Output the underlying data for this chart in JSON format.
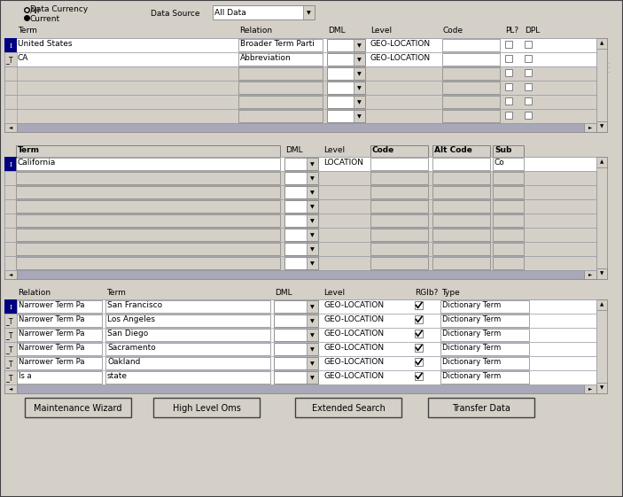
{
  "panel_color": "#d4d0c8",
  "blue_sel": "#000080",
  "dark_blue_scroll": "#8080a0",
  "top_section": {
    "rows": [
      {
        "sel": true,
        "prefix": "I",
        "term": "United States",
        "relation": "Broader Term Parti",
        "level": "GEO-LOCATION"
      },
      {
        "sel": false,
        "prefix": "_T",
        "term": "CA",
        "relation": "Abbreviation",
        "level": "GEO-LOCATION"
      },
      {
        "sel": false,
        "prefix": "",
        "term": "",
        "relation": "",
        "level": ""
      },
      {
        "sel": false,
        "prefix": "",
        "term": "",
        "relation": "",
        "level": ""
      },
      {
        "sel": false,
        "prefix": "",
        "term": "",
        "relation": "",
        "level": ""
      },
      {
        "sel": false,
        "prefix": "",
        "term": "",
        "relation": "",
        "level": ""
      }
    ]
  },
  "mid_section": {
    "rows": [
      {
        "sel": true,
        "term": "California",
        "level": "LOCATION",
        "sub": "Co"
      },
      {
        "sel": false,
        "term": "",
        "level": "",
        "sub": ""
      },
      {
        "sel": false,
        "term": "",
        "level": "",
        "sub": ""
      },
      {
        "sel": false,
        "term": "",
        "level": "",
        "sub": ""
      },
      {
        "sel": false,
        "term": "",
        "level": "",
        "sub": ""
      },
      {
        "sel": false,
        "term": "",
        "level": "",
        "sub": ""
      },
      {
        "sel": false,
        "term": "",
        "level": "",
        "sub": ""
      },
      {
        "sel": false,
        "term": "",
        "level": "",
        "sub": ""
      }
    ]
  },
  "bot_section": {
    "rows": [
      {
        "sel": true,
        "prefix": "I",
        "relation": "Narrower Term Pa",
        "term": "San Francisco",
        "level": "GEO-LOCATION",
        "rglb": true,
        "type": "Dictionary Term"
      },
      {
        "sel": false,
        "prefix": "_T",
        "relation": "Narrower Term Pa",
        "term": "Los Angeles",
        "level": "GEO-LOCATION",
        "rglb": true,
        "type": "Dictionary Term"
      },
      {
        "sel": false,
        "prefix": "_T",
        "relation": "Narrower Term Pa",
        "term": "San Diego",
        "level": "GEO-LOCATION",
        "rglb": true,
        "type": "Dictionary Term"
      },
      {
        "sel": false,
        "prefix": "_T",
        "relation": "Narrower Term Pa",
        "term": "Sacramento",
        "level": "GEO-LOCATION",
        "rglb": true,
        "type": "Dictionary Term"
      },
      {
        "sel": false,
        "prefix": "_T",
        "relation": "Narrower Term Pa",
        "term": "Oakland",
        "level": "GEO-LOCATION",
        "rglb": true,
        "type": "Dictionary Term"
      },
      {
        "sel": false,
        "prefix": "_T",
        "relation": "Is a",
        "term": "state",
        "level": "GEO-LOCATION",
        "rglb": true,
        "type": "Dictionary Term"
      }
    ]
  },
  "buttons": [
    "Maintenance Wizard",
    "High Level Oms",
    "Extended Search",
    "Transfer Data"
  ]
}
